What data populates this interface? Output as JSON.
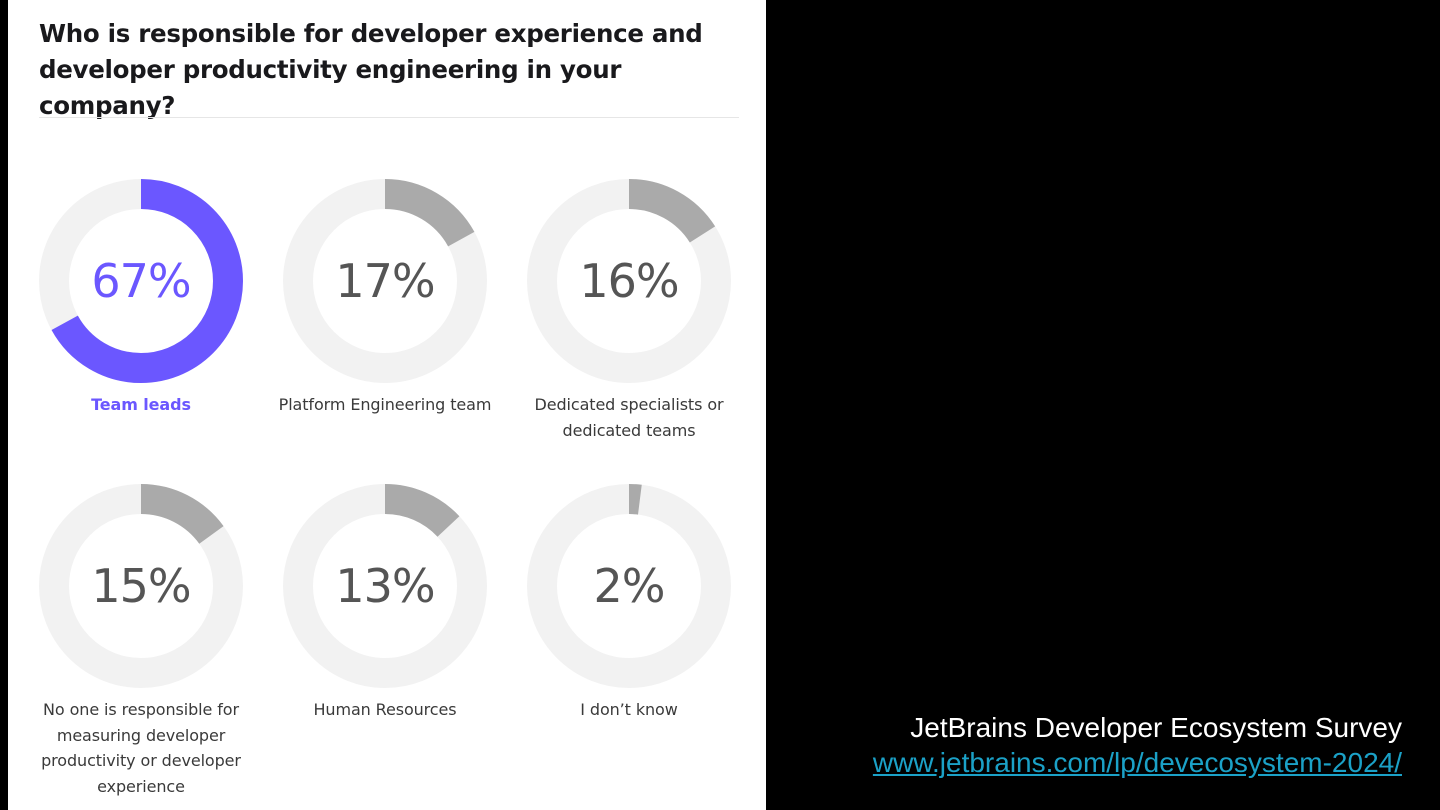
{
  "chart_data": {
    "type": "pie",
    "subtype": "donut-grid",
    "title": "Who is responsible for developer experience and developer productivity engineering in your company?",
    "unit": "%",
    "categories": [
      "Team leads",
      "Platform Engineering team",
      "Dedicated specialists or dedicated teams",
      "No one is responsible for measuring developer productivity or developer experience",
      "Human Resources",
      "I don’t know"
    ],
    "values": [
      67,
      17,
      16,
      15,
      13,
      2
    ],
    "value_labels": [
      "67%",
      "17%",
      "16%",
      "15%",
      "13%",
      "2%"
    ],
    "highlight_index": 0,
    "colors": {
      "highlight": "#6b57ff",
      "default_arc": "#aaaaaa",
      "track": "#f2f2f2",
      "default_text": "#555555"
    }
  },
  "source": {
    "title": "JetBrains Developer Ecosystem Survey",
    "link": "www.jetbrains.com/lp/devecosystem-2024/"
  }
}
